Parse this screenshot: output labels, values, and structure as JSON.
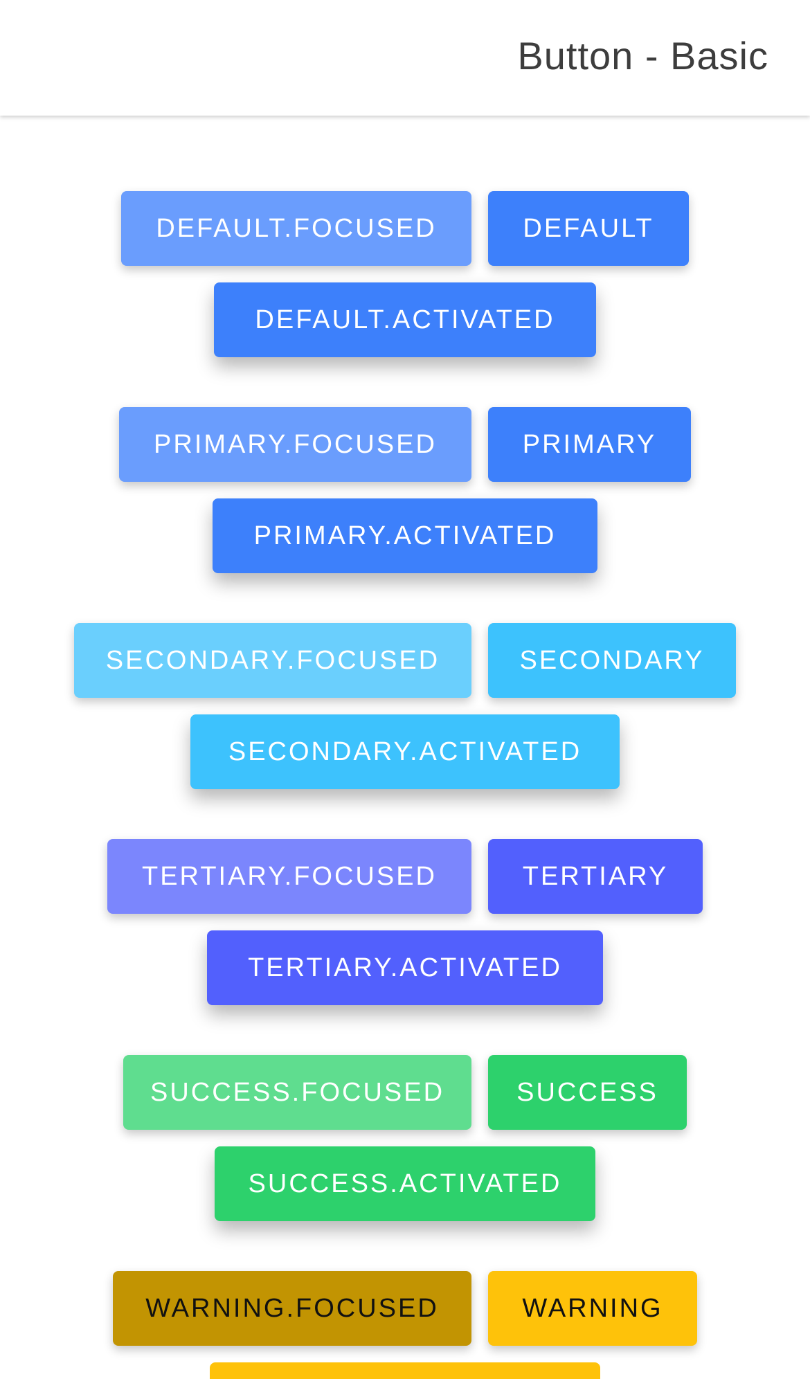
{
  "header": {
    "title": "Button - Basic"
  },
  "groups": {
    "default": {
      "focused_label": "DEFAULT.FOCUSED",
      "label": "DEFAULT",
      "activated_label": "DEFAULT.ACTIVATED",
      "colors": {
        "focused": "#6a9dfd",
        "normal": "#3d80fb",
        "activated": "#3d80fb",
        "text": "#ffffff"
      }
    },
    "primary": {
      "focused_label": "PRIMARY.FOCUSED",
      "label": "PRIMARY",
      "activated_label": "PRIMARY.ACTIVATED",
      "colors": {
        "focused": "#6a9dfd",
        "normal": "#3d80fb",
        "activated": "#3d80fb",
        "text": "#ffffff"
      }
    },
    "secondary": {
      "focused_label": "SECONDARY.FOCUSED",
      "label": "SECONDARY",
      "activated_label": "SECONDARY.ACTIVATED",
      "colors": {
        "focused": "#6acffd",
        "normal": "#3dc2fd",
        "activated": "#3dc2fd",
        "text": "#ffffff"
      }
    },
    "tertiary": {
      "focused_label": "TERTIARY.FOCUSED",
      "label": "TERTIARY",
      "activated_label": "TERTIARY.ACTIVATED",
      "colors": {
        "focused": "#7b86fd",
        "normal": "#5260fd",
        "activated": "#5260fd",
        "text": "#ffffff"
      }
    },
    "success": {
      "focused_label": "SUCCESS.FOCUSED",
      "label": "SUCCESS",
      "activated_label": "SUCCESS.ACTIVATED",
      "colors": {
        "focused": "#5fdd8f",
        "normal": "#2dd16c",
        "activated": "#2dd16c",
        "text": "#ffffff"
      }
    },
    "warning": {
      "focused_label": "WARNING.FOCUSED",
      "label": "WARNING",
      "colors": {
        "focused": "#c29402",
        "normal": "#fec20a",
        "activated": "#fec20a",
        "text": "#111111"
      }
    }
  }
}
